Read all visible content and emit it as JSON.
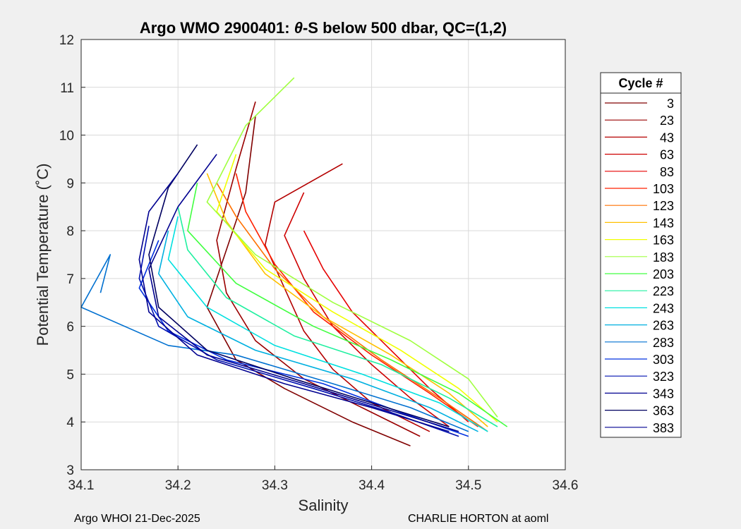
{
  "chart_data": {
    "type": "line",
    "title_prefix": "Argo WMO 2900401: ",
    "title_symbol": "θ",
    "title_suffix": "-S below 500 dbar,  QC=(1,2)",
    "xlabel": "Salinity",
    "ylabel": "Potential Temperature (˚C)",
    "xlim": [
      34.1,
      34.6
    ],
    "ylim": [
      3,
      12
    ],
    "xticks": [
      34.1,
      34.2,
      34.3,
      34.4,
      34.5,
      34.6
    ],
    "xtick_labels": [
      "34.1",
      "34.2",
      "34.3",
      "34.4",
      "34.5",
      "34.6"
    ],
    "yticks": [
      3,
      4,
      5,
      6,
      7,
      8,
      9,
      10,
      11,
      12
    ],
    "ytick_labels": [
      "3",
      "4",
      "5",
      "6",
      "7",
      "8",
      "9",
      "10",
      "11",
      "12"
    ],
    "grid": true,
    "legend_title": "Cycle #",
    "legend_position": "right",
    "series": [
      {
        "name": "3",
        "color": "#800000",
        "points": [
          [
            34.44,
            3.5
          ],
          [
            34.38,
            4.0
          ],
          [
            34.31,
            4.7
          ],
          [
            34.26,
            5.3
          ],
          [
            34.23,
            6.4
          ],
          [
            34.25,
            7.6
          ],
          [
            34.27,
            8.8
          ],
          [
            34.28,
            10.4
          ]
        ]
      },
      {
        "name": "23",
        "color": "#9a0000",
        "points": [
          [
            34.45,
            3.7
          ],
          [
            34.39,
            4.3
          ],
          [
            34.33,
            4.9
          ],
          [
            34.28,
            5.7
          ],
          [
            34.25,
            6.7
          ],
          [
            34.24,
            7.8
          ],
          [
            34.26,
            9.3
          ],
          [
            34.28,
            10.7
          ]
        ]
      },
      {
        "name": "43",
        "color": "#b40000",
        "points": [
          [
            34.46,
            3.8
          ],
          [
            34.4,
            4.4
          ],
          [
            34.36,
            5.1
          ],
          [
            34.33,
            5.9
          ],
          [
            34.31,
            6.8
          ],
          [
            34.29,
            7.7
          ],
          [
            34.3,
            8.6
          ],
          [
            34.37,
            9.4
          ]
        ]
      },
      {
        "name": "63",
        "color": "#ce0000",
        "points": [
          [
            34.48,
            3.9
          ],
          [
            34.44,
            4.5
          ],
          [
            34.4,
            5.2
          ],
          [
            34.36,
            6.0
          ],
          [
            34.33,
            7.0
          ],
          [
            34.31,
            7.9
          ],
          [
            34.33,
            8.8
          ]
        ]
      },
      {
        "name": "83",
        "color": "#e60000",
        "points": [
          [
            34.5,
            4.0
          ],
          [
            34.46,
            4.7
          ],
          [
            34.42,
            5.5
          ],
          [
            34.38,
            6.3
          ],
          [
            34.35,
            7.2
          ],
          [
            34.33,
            8.0
          ]
        ]
      },
      {
        "name": "103",
        "color": "#ff2000",
        "points": [
          [
            34.51,
            3.9
          ],
          [
            34.46,
            4.6
          ],
          [
            34.4,
            5.4
          ],
          [
            34.34,
            6.3
          ],
          [
            34.3,
            7.3
          ],
          [
            34.27,
            8.4
          ],
          [
            34.26,
            9.2
          ]
        ]
      },
      {
        "name": "123",
        "color": "#ff7000",
        "points": [
          [
            34.52,
            3.8
          ],
          [
            34.47,
            4.5
          ],
          [
            34.41,
            5.3
          ],
          [
            34.35,
            6.2
          ],
          [
            34.3,
            7.2
          ],
          [
            34.26,
            8.3
          ],
          [
            34.24,
            9.0
          ]
        ]
      },
      {
        "name": "143",
        "color": "#ffc000",
        "points": [
          [
            34.52,
            3.9
          ],
          [
            34.48,
            4.6
          ],
          [
            34.42,
            5.4
          ],
          [
            34.35,
            6.2
          ],
          [
            34.29,
            7.1
          ],
          [
            34.25,
            8.2
          ],
          [
            34.23,
            9.2
          ]
        ]
      },
      {
        "name": "163",
        "color": "#f0ff00",
        "points": [
          [
            34.53,
            4.0
          ],
          [
            34.49,
            4.7
          ],
          [
            34.43,
            5.5
          ],
          [
            34.36,
            6.3
          ],
          [
            34.29,
            7.2
          ],
          [
            34.24,
            8.4
          ],
          [
            34.26,
            9.6
          ]
        ]
      },
      {
        "name": "183",
        "color": "#a0ff40",
        "points": [
          [
            34.53,
            4.1
          ],
          [
            34.5,
            4.9
          ],
          [
            34.44,
            5.7
          ],
          [
            34.36,
            6.5
          ],
          [
            34.28,
            7.5
          ],
          [
            34.23,
            8.6
          ],
          [
            34.27,
            10.2
          ],
          [
            34.32,
            11.2
          ]
        ]
      },
      {
        "name": "203",
        "color": "#40ff40",
        "points": [
          [
            34.54,
            3.9
          ],
          [
            34.49,
            4.6
          ],
          [
            34.42,
            5.3
          ],
          [
            34.34,
            6.0
          ],
          [
            34.26,
            6.9
          ],
          [
            34.21,
            8.0
          ],
          [
            34.22,
            9.0
          ]
        ]
      },
      {
        "name": "223",
        "color": "#20f0a0",
        "points": [
          [
            34.53,
            3.9
          ],
          [
            34.48,
            4.5
          ],
          [
            34.41,
            5.2
          ],
          [
            34.32,
            5.8
          ],
          [
            34.25,
            6.6
          ],
          [
            34.21,
            7.6
          ],
          [
            34.2,
            8.5
          ]
        ]
      },
      {
        "name": "243",
        "color": "#00e0e0",
        "points": [
          [
            34.52,
            3.8
          ],
          [
            34.47,
            4.4
          ],
          [
            34.39,
            5.0
          ],
          [
            34.3,
            5.6
          ],
          [
            34.23,
            6.4
          ],
          [
            34.19,
            7.4
          ],
          [
            34.2,
            8.3
          ]
        ]
      },
      {
        "name": "263",
        "color": "#00b0e0",
        "points": [
          [
            34.51,
            3.8
          ],
          [
            34.46,
            4.3
          ],
          [
            34.38,
            4.9
          ],
          [
            34.28,
            5.5
          ],
          [
            34.21,
            6.2
          ],
          [
            34.18,
            7.1
          ],
          [
            34.19,
            8.0
          ]
        ]
      },
      {
        "name": "283",
        "color": "#0070d0",
        "points": [
          [
            34.5,
            3.8
          ],
          [
            34.44,
            4.3
          ],
          [
            34.36,
            4.8
          ],
          [
            34.26,
            5.4
          ],
          [
            34.19,
            5.6
          ],
          [
            34.1,
            6.4
          ],
          [
            34.13,
            7.5
          ],
          [
            34.12,
            6.7
          ]
        ]
      },
      {
        "name": "303",
        "color": "#0030e0",
        "points": [
          [
            34.5,
            3.7
          ],
          [
            34.43,
            4.2
          ],
          [
            34.35,
            4.8
          ],
          [
            34.25,
            5.3
          ],
          [
            34.19,
            5.9
          ],
          [
            34.16,
            6.8
          ],
          [
            34.18,
            7.8
          ]
        ]
      },
      {
        "name": "323",
        "color": "#0010b0",
        "points": [
          [
            34.49,
            3.7
          ],
          [
            34.42,
            4.2
          ],
          [
            34.34,
            4.7
          ],
          [
            34.24,
            5.3
          ],
          [
            34.18,
            6.0
          ],
          [
            34.16,
            7.0
          ],
          [
            34.17,
            8.1
          ]
        ]
      },
      {
        "name": "343",
        "color": "#000090",
        "points": [
          [
            34.49,
            3.8
          ],
          [
            34.41,
            4.3
          ],
          [
            34.33,
            4.8
          ],
          [
            34.23,
            5.4
          ],
          [
            34.18,
            6.2
          ],
          [
            34.17,
            7.2
          ],
          [
            34.2,
            8.5
          ],
          [
            34.24,
            9.6
          ]
        ]
      },
      {
        "name": "363",
        "color": "#000060",
        "points": [
          [
            34.48,
            3.9
          ],
          [
            34.4,
            4.4
          ],
          [
            34.32,
            4.9
          ],
          [
            34.23,
            5.5
          ],
          [
            34.18,
            6.4
          ],
          [
            34.17,
            7.5
          ],
          [
            34.19,
            8.9
          ],
          [
            34.22,
            9.8
          ]
        ]
      },
      {
        "name": "383",
        "color": "#000090",
        "points": [
          [
            34.48,
            3.8
          ],
          [
            34.4,
            4.3
          ],
          [
            34.31,
            4.8
          ],
          [
            34.22,
            5.4
          ],
          [
            34.17,
            6.3
          ],
          [
            34.16,
            7.4
          ],
          [
            34.17,
            8.4
          ],
          [
            34.2,
            9.2
          ]
        ]
      }
    ]
  },
  "footer": {
    "left": "Argo WHOI 21-Dec-2025",
    "right": "CHARLIE HORTON at aoml"
  }
}
